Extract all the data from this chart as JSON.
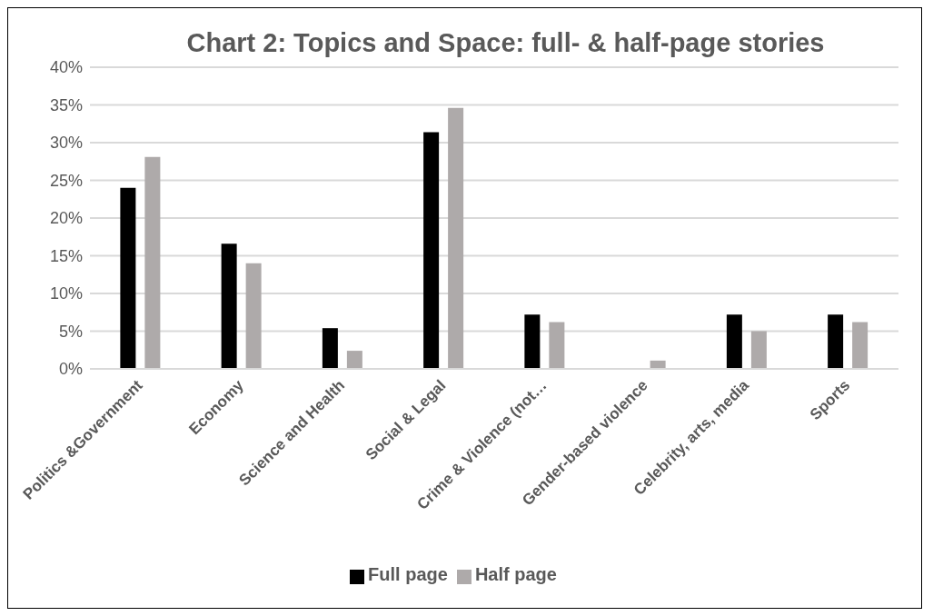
{
  "chart_data": {
    "type": "bar",
    "title": "Chart 2: Topics and Space:  full- & half-page stories",
    "categories": [
      "Politics &Government",
      "Economy",
      "Science and Health",
      "Social  & Legal",
      "Crime & Violence (not…",
      "Gender-based violence",
      "Celebrity, arts, media",
      "Sports"
    ],
    "series": [
      {
        "name": "Full page",
        "color": "#000000",
        "values": [
          24.0,
          16.6,
          5.4,
          31.4,
          7.2,
          0,
          7.2,
          7.2
        ]
      },
      {
        "name": "Half page",
        "color": "#aeaaaa",
        "values": [
          28.1,
          14.0,
          2.4,
          34.6,
          6.2,
          1.1,
          5.0,
          6.2
        ]
      }
    ],
    "ylim": [
      0,
      40
    ],
    "yticks": [
      {
        "value": 0,
        "label": "0%"
      },
      {
        "value": 5,
        "label": "5%"
      },
      {
        "value": 10,
        "label": "10%"
      },
      {
        "value": 15,
        "label": "15%"
      },
      {
        "value": 20,
        "label": "20%"
      },
      {
        "value": 25,
        "label": "25%"
      },
      {
        "value": 30,
        "label": "30%"
      },
      {
        "value": 35,
        "label": "35%"
      },
      {
        "value": 40,
        "label": "40%"
      }
    ],
    "grid": "y",
    "legend": "bottom"
  }
}
